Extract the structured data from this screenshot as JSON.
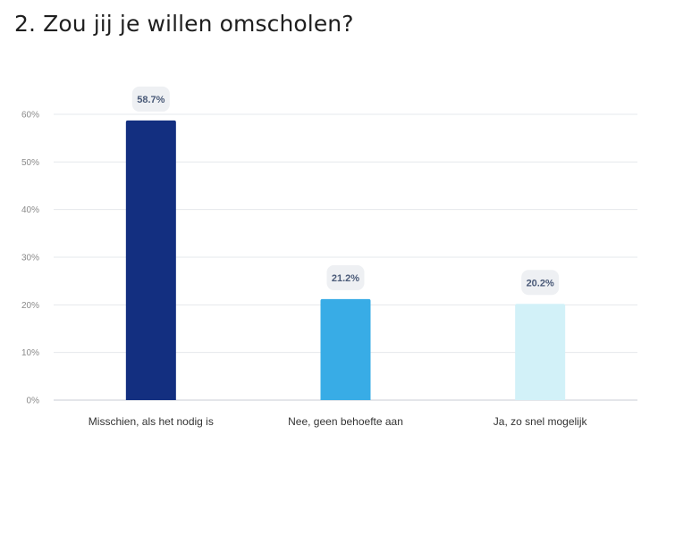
{
  "title": "2. Zou jij je willen omscholen?",
  "chart_data": {
    "type": "bar",
    "categories": [
      "Misschien, als het nodig is",
      "Nee, geen behoefte aan",
      "Ja, zo snel mogelijk"
    ],
    "values": [
      58.7,
      21.2,
      20.2
    ],
    "value_labels": [
      "58.7%",
      "21.2%",
      "20.2%"
    ],
    "bar_colors": [
      "#132f80",
      "#38ace6",
      "#d2f1f8"
    ],
    "ylim": [
      0,
      60
    ],
    "yticks": [
      0,
      10,
      20,
      30,
      40,
      50,
      60
    ],
    "ytick_labels": [
      "0%",
      "10%",
      "20%",
      "30%",
      "40%",
      "50%",
      "60%"
    ],
    "grid": true,
    "xlabel": "",
    "ylabel": ""
  }
}
